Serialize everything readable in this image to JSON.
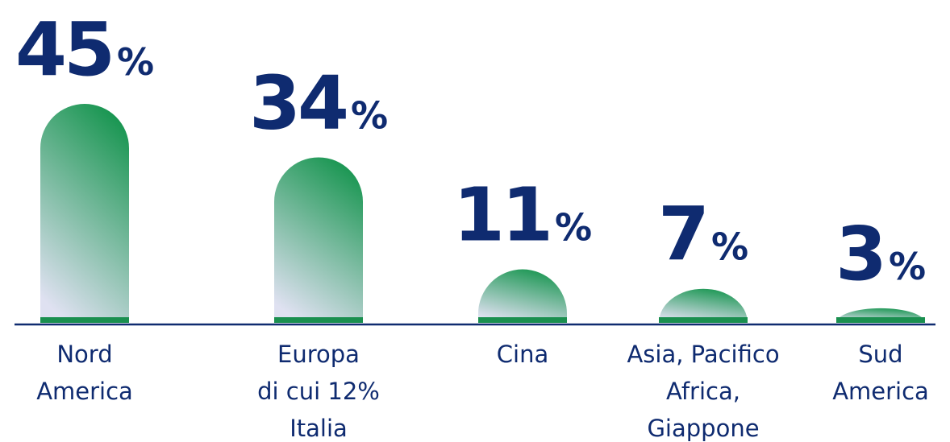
{
  "chart_data": {
    "type": "bar",
    "unit": "%",
    "categories": [
      "Nord\nAmerica",
      "Europa\ndi cui 12%\nItalia",
      "Cina",
      "Asia, Pacifico\nAfrica,\nGiappone",
      "Sud\nAmerica"
    ],
    "values": [
      45,
      34,
      11,
      7,
      3
    ],
    "color": "#1a8f4f"
  }
}
